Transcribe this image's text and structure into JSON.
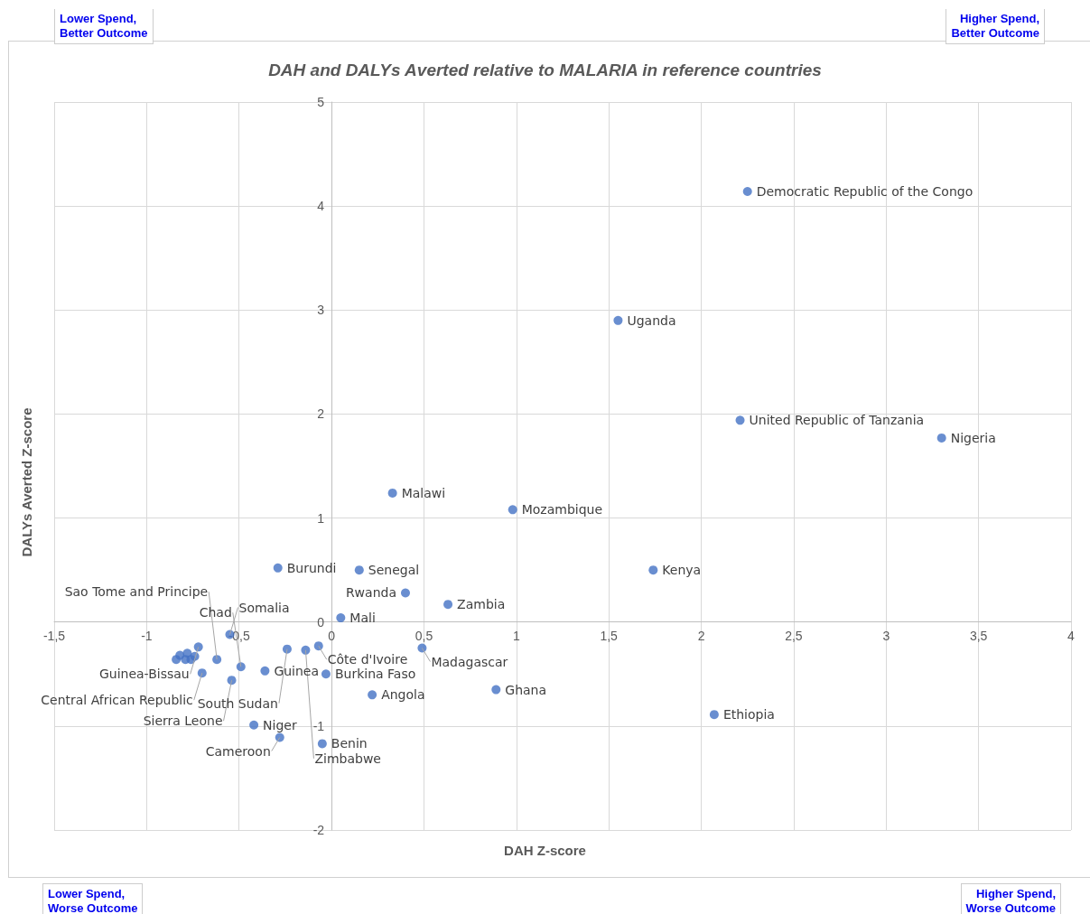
{
  "chart_data": {
    "type": "scatter",
    "title": "DAH and DALYs Averted relative to MALARIA in reference countries",
    "xlabel": "DAH Z-score",
    "ylabel": "DALYs Averted Z-score",
    "x": [
      2.25,
      1.55,
      2.21,
      3.3,
      0.33,
      0.98,
      1.74,
      -0.29,
      0.15,
      0.4,
      0.63,
      0.05,
      -0.55,
      0.49,
      -0.07,
      -0.72,
      -0.24,
      -0.14,
      -0.7,
      -0.54,
      -0.49,
      -0.36,
      -0.03,
      -0.62,
      0.22,
      0.89,
      2.07,
      -0.42,
      -0.28,
      -0.05,
      -0.84,
      -0.82,
      -0.79,
      -0.78,
      -0.76,
      -0.74
    ],
    "series": [
      {
        "color": "#4472c4",
        "values": [
          4.14,
          2.9,
          1.94,
          1.77,
          1.24,
          1.08,
          0.5,
          0.52,
          0.5,
          0.28,
          0.17,
          0.04,
          -0.12,
          -0.25,
          -0.23,
          -0.24,
          -0.26,
          -0.27,
          -0.49,
          -0.56,
          -0.43,
          -0.47,
          -0.5,
          -0.36,
          -0.7,
          -0.65,
          -0.89,
          -0.99,
          -1.11,
          -1.17,
          -0.36,
          -0.32,
          -0.36,
          -0.3,
          -0.36,
          -0.33
        ]
      }
    ],
    "marker": "circle",
    "grid": true,
    "xlim": [
      -1.5,
      4
    ],
    "ylim": [
      -2,
      5
    ],
    "xticks": [
      {
        "value": -1.5,
        "label": "-1,5"
      },
      -1,
      {
        "value": -0.5,
        "label": "-0,5"
      },
      0,
      {
        "value": 0.5,
        "label": "0,5"
      },
      1,
      {
        "value": 1.5,
        "label": "1,5"
      },
      2,
      {
        "value": 2.5,
        "label": "2,5"
      },
      3,
      {
        "value": 3.5,
        "label": "3,5"
      },
      4
    ],
    "yticks": [
      -2,
      -1,
      0,
      1,
      2,
      3,
      4,
      5
    ],
    "annotations": [
      "Lower Spend,\nBetter Outcome",
      "Higher Spend,\nBetter Outcome",
      "Lower Spend,\nWorse Outcome",
      "Higher Spend,\nWorse Outcome",
      {
        "text": "Democratic Republic of the Congo",
        "x": 2.25,
        "y": 4.14
      },
      {
        "text": "Uganda",
        "x": 1.55,
        "y": 2.9
      },
      {
        "text": "United Republic of Tanzania",
        "x": 2.21,
        "y": 1.94
      },
      {
        "text": "Nigeria",
        "x": 3.3,
        "y": 1.77
      },
      {
        "text": "Malawi",
        "x": 0.33,
        "y": 1.24
      },
      {
        "text": "Mozambique",
        "x": 0.98,
        "y": 1.08
      },
      {
        "text": "Kenya",
        "x": 1.74,
        "y": 0.5
      },
      {
        "text": "Burundi",
        "x": -0.29,
        "y": 0.52
      },
      {
        "text": "Senegal",
        "x": 0.15,
        "y": 0.5
      },
      {
        "text": "Rwanda",
        "x": 0.4,
        "y": 0.28
      },
      {
        "text": "Zambia",
        "x": 0.63,
        "y": 0.17
      },
      {
        "text": "Mali",
        "x": 0.05,
        "y": 0.04
      },
      {
        "text": "Somalia",
        "x": -0.55,
        "y": -0.12
      },
      {
        "text": "Madagascar",
        "x": 0.49,
        "y": -0.25
      },
      {
        "text": "Côte d'Ivoire",
        "x": -0.07,
        "y": -0.23
      },
      {
        "text": "Guinea-Bissau",
        "x": -0.72,
        "y": -0.24
      },
      {
        "text": "South Sudan",
        "x": -0.24,
        "y": -0.26
      },
      {
        "text": "Zimbabwe",
        "x": -0.14,
        "y": -0.27
      },
      {
        "text": "Central African Republic",
        "x": -0.7,
        "y": -0.49
      },
      {
        "text": "Sierra Leone",
        "x": -0.54,
        "y": -0.56
      },
      {
        "text": "Chad",
        "x": -0.49,
        "y": -0.43
      },
      {
        "text": "Guinea",
        "x": -0.36,
        "y": -0.47
      },
      {
        "text": "Burkina Faso",
        "x": -0.03,
        "y": -0.5
      },
      {
        "text": "Sao Tome and Principe",
        "x": -0.62,
        "y": -0.36
      },
      {
        "text": "Angola",
        "x": 0.22,
        "y": -0.7
      },
      {
        "text": "Ghana",
        "x": 0.89,
        "y": -0.65
      },
      {
        "text": "Ethiopia",
        "x": 2.07,
        "y": -0.89
      },
      {
        "text": "Niger",
        "x": -0.42,
        "y": -0.99
      },
      {
        "text": "Cameroon",
        "x": -0.28,
        "y": -1.11
      },
      {
        "text": "Benin",
        "x": -0.05,
        "y": -1.17
      }
    ]
  }
}
